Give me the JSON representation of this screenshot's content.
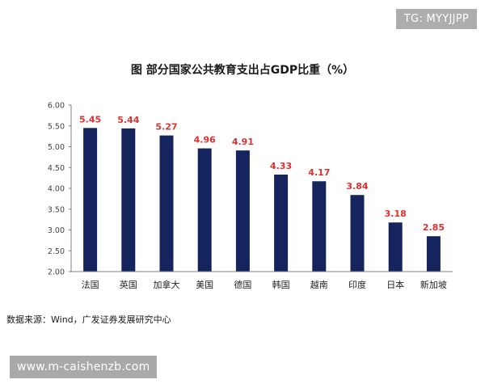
{
  "watermarks": {
    "top_right": "TG: MYYJJPP",
    "bottom_left": "www.m-caishenzb.com"
  },
  "source_note": "数据来源：Wind，广发证券发展研究中心",
  "colors": {
    "bar": "#15245c",
    "data_label": "#e03030",
    "axis": "#7f7f7f"
  },
  "chart_data": {
    "type": "bar",
    "title": "图  部分国家公共教育支出占GDP比重（%）",
    "xlabel": "",
    "ylabel": "",
    "categories": [
      "法国",
      "英国",
      "加拿大",
      "美国",
      "德国",
      "韩国",
      "越南",
      "印度",
      "日本",
      "新加坡"
    ],
    "values": [
      5.45,
      5.44,
      5.27,
      4.96,
      4.91,
      4.33,
      4.17,
      3.84,
      3.18,
      2.85
    ],
    "data_labels": [
      "5.45",
      "5.44",
      "5.27",
      "4.96",
      "4.91",
      "4.33",
      "4.17",
      "3.84",
      "3.18",
      "2.85"
    ],
    "ylim": [
      2.0,
      6.0
    ],
    "yticks": [
      "2.00",
      "2.50",
      "3.00",
      "3.50",
      "4.00",
      "4.50",
      "5.00",
      "5.50",
      "6.00"
    ],
    "grid": false,
    "legend": "none"
  }
}
